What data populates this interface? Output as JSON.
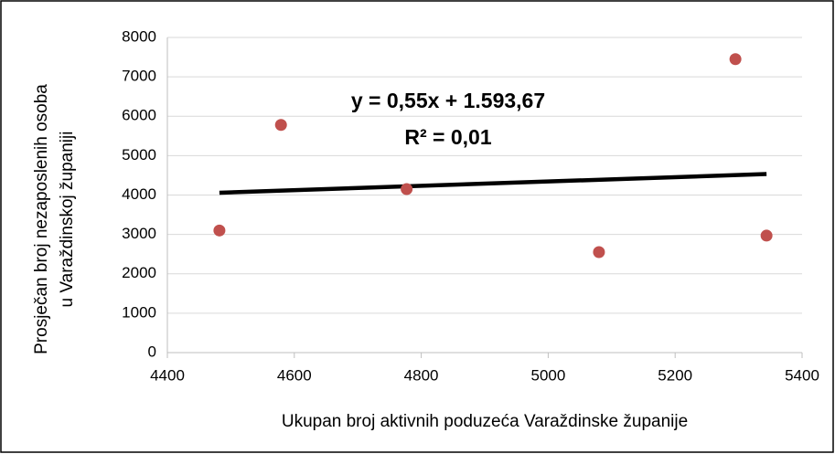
{
  "chart_data": {
    "type": "scatter",
    "xlabel": "Ukupan broj aktivnih poduzeća Varaždinske županije",
    "ylabel": [
      "Prosječan broj nezaposlenih osoba",
      "u Varaždinskoj županiji"
    ],
    "x": [
      4482,
      4579,
      4777,
      5080,
      5295,
      5344
    ],
    "values": [
      3100,
      5780,
      4150,
      2550,
      7450,
      2970
    ],
    "color": "#c0504d",
    "xlim": [
      4400,
      5400
    ],
    "xticks": [
      4400,
      4600,
      4800,
      5000,
      5200,
      5400
    ],
    "ylim": [
      0,
      8000
    ],
    "yticks": [
      0,
      1000,
      2000,
      3000,
      4000,
      5000,
      6000,
      7000,
      8000
    ],
    "grid": true,
    "trendline": {
      "slope": 0.55,
      "intercept": 1593.67,
      "color": "#000000"
    },
    "annotations": [
      "y = 0,55x + 1.593,67",
      "R² = 0,01"
    ]
  }
}
